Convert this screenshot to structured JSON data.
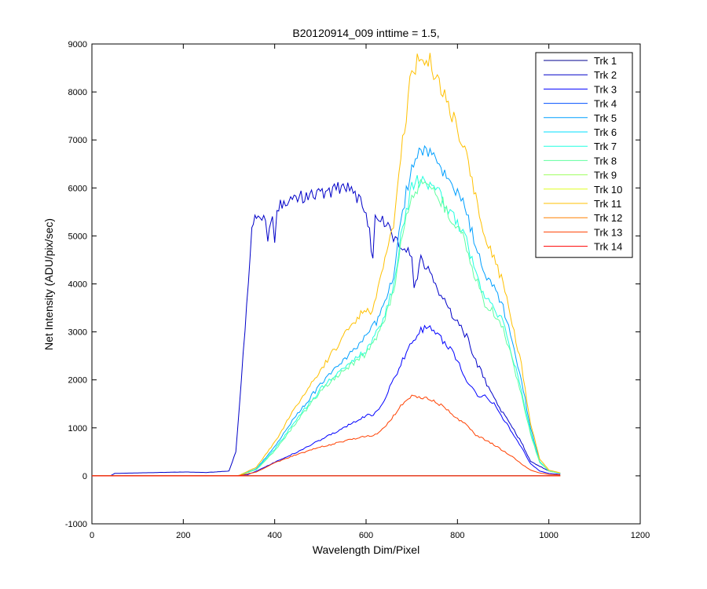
{
  "chart_data": {
    "type": "line",
    "title": "B20120914_009 inttime = 1.5,",
    "xlabel": "Wavelength Dim/Pixel",
    "ylabel": "Net Intensity (ADU/pix/sec)",
    "xlim": [
      0,
      1200
    ],
    "ylim": [
      -1000,
      9000
    ],
    "xticks": [
      "0",
      "200",
      "400",
      "600",
      "800",
      "1000",
      "1200"
    ],
    "yticks": [
      "-1000",
      "0",
      "1000",
      "2000",
      "3000",
      "4000",
      "5000",
      "6000",
      "7000",
      "8000",
      "9000"
    ],
    "grid": false,
    "legend_position": "top-right",
    "series": [
      {
        "name": "Trk 1",
        "color": "#00008f",
        "x": [
          0,
          1025
        ],
        "y": [
          0,
          0
        ]
      },
      {
        "name": "Trk 2",
        "color": "#0000c8",
        "x": [
          0,
          40,
          50,
          100,
          150,
          200,
          250,
          300,
          315,
          335,
          350,
          360,
          380,
          385,
          395,
          400,
          405,
          420,
          450,
          500,
          550,
          560,
          580,
          600,
          615,
          620,
          640,
          660,
          680,
          700,
          705,
          720,
          740,
          760,
          780,
          800,
          820,
          840,
          860,
          880,
          900,
          920,
          940,
          950,
          960,
          980,
          1000,
          1025
        ],
        "y": [
          0,
          0,
          50,
          60,
          70,
          80,
          70,
          100,
          500,
          3000,
          5200,
          5400,
          5450,
          5000,
          5400,
          4750,
          5600,
          5700,
          5800,
          5900,
          6000,
          6100,
          5800,
          5600,
          4500,
          5400,
          5300,
          5000,
          4800,
          4600,
          3900,
          4500,
          4200,
          3800,
          3500,
          3200,
          2900,
          2400,
          2000,
          1600,
          1300,
          1000,
          700,
          500,
          300,
          200,
          100,
          50
        ]
      },
      {
        "name": "Trk 3",
        "color": "#0000ff",
        "x": [
          0,
          310,
          340,
          360,
          400,
          450,
          500,
          550,
          600,
          620,
          640,
          660,
          680,
          700,
          720,
          740,
          760,
          780,
          800,
          820,
          840,
          860,
          880,
          900,
          920,
          940,
          960,
          980,
          1000,
          1025
        ],
        "y": [
          0,
          0,
          20,
          100,
          280,
          500,
          750,
          1000,
          1250,
          1300,
          1600,
          2000,
          2400,
          2800,
          3050,
          3100,
          2900,
          2700,
          2400,
          2000,
          1700,
          1650,
          1500,
          1200,
          900,
          600,
          250,
          100,
          50,
          30
        ]
      },
      {
        "name": "Trk 4",
        "color": "#0050ff",
        "x": [
          0,
          1025
        ],
        "y": [
          0,
          0
        ]
      },
      {
        "name": "Trk 5",
        "color": "#009fff",
        "x": [
          0,
          320,
          360,
          400,
          450,
          500,
          550,
          600,
          630,
          660,
          680,
          700,
          720,
          740,
          760,
          780,
          800,
          820,
          840,
          860,
          880,
          900,
          920,
          940,
          960,
          980,
          1000,
          1025
        ],
        "y": [
          0,
          0,
          150,
          600,
          1300,
          1900,
          2400,
          2900,
          3300,
          4200,
          5500,
          6500,
          6800,
          6700,
          6500,
          6200,
          5900,
          5500,
          4800,
          4200,
          4000,
          3500,
          2800,
          2000,
          1000,
          300,
          100,
          50
        ]
      },
      {
        "name": "Trk 6",
        "color": "#00dfff",
        "x": [
          0,
          1025
        ],
        "y": [
          0,
          0
        ]
      },
      {
        "name": "Trk 7",
        "color": "#20ffe0",
        "x": [
          0,
          320,
          360,
          400,
          450,
          500,
          550,
          600,
          630,
          660,
          680,
          700,
          720,
          740,
          760,
          780,
          800,
          820,
          840,
          860,
          880,
          900,
          920,
          940,
          960,
          980,
          1000,
          1025
        ],
        "y": [
          0,
          0,
          140,
          550,
          1200,
          1800,
          2250,
          2600,
          3100,
          3900,
          5200,
          6000,
          6200,
          6100,
          5900,
          5600,
          5300,
          4900,
          4200,
          3700,
          3500,
          3200,
          2500,
          1800,
          900,
          300,
          100,
          50
        ]
      },
      {
        "name": "Trk 8",
        "color": "#60ff9f",
        "x": [
          0,
          320,
          360,
          400,
          450,
          500,
          550,
          600,
          630,
          660,
          680,
          700,
          720,
          740,
          760,
          780,
          800,
          820,
          840,
          860,
          880,
          900,
          920,
          940,
          960,
          980,
          1000,
          1025
        ],
        "y": [
          0,
          0,
          130,
          520,
          1150,
          1750,
          2200,
          2550,
          3000,
          3800,
          5100,
          5900,
          6100,
          6000,
          5800,
          5500,
          5200,
          4800,
          4100,
          3600,
          3400,
          3100,
          2400,
          1700,
          850,
          280,
          100,
          50
        ]
      },
      {
        "name": "Trk 9",
        "color": "#9fff60",
        "x": [
          0,
          1025
        ],
        "y": [
          0,
          0
        ]
      },
      {
        "name": "Trk 10",
        "color": "#dfff20",
        "x": [
          0,
          1025
        ],
        "y": [
          0,
          0
        ]
      },
      {
        "name": "Trk 11",
        "color": "#ffc000",
        "x": [
          0,
          320,
          360,
          400,
          450,
          500,
          550,
          600,
          610,
          630,
          660,
          680,
          700,
          720,
          740,
          760,
          780,
          800,
          820,
          840,
          860,
          880,
          900,
          920,
          940,
          960,
          980,
          1000,
          1025
        ],
        "y": [
          0,
          0,
          180,
          700,
          1500,
          2200,
          2900,
          3500,
          3300,
          4000,
          5200,
          7000,
          8400,
          8800,
          8600,
          8200,
          7700,
          7200,
          6600,
          5800,
          5000,
          4500,
          4000,
          3200,
          2300,
          1100,
          350,
          120,
          60
        ]
      },
      {
        "name": "Trk 12",
        "color": "#ff8000",
        "x": [
          0,
          1025
        ],
        "y": [
          0,
          0
        ]
      },
      {
        "name": "Trk 13",
        "color": "#ff4000",
        "x": [
          0,
          320,
          360,
          400,
          450,
          500,
          550,
          600,
          620,
          640,
          660,
          680,
          700,
          720,
          740,
          760,
          780,
          800,
          820,
          840,
          860,
          880,
          900,
          920,
          940,
          960,
          980,
          1000,
          1025
        ],
        "y": [
          0,
          0,
          80,
          270,
          450,
          600,
          720,
          820,
          850,
          1000,
          1250,
          1500,
          1650,
          1650,
          1600,
          1500,
          1350,
          1200,
          1050,
          850,
          750,
          650,
          520,
          400,
          250,
          120,
          60,
          30,
          20
        ]
      },
      {
        "name": "Trk 14",
        "color": "#ff0000",
        "x": [
          0,
          1025
        ],
        "y": [
          0,
          0
        ]
      }
    ]
  }
}
